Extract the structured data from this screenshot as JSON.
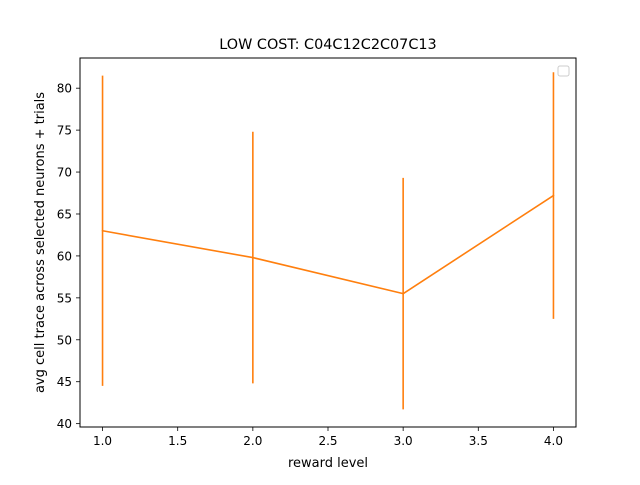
{
  "chart_data": {
    "type": "line",
    "title": "LOW COST: C04C12C2C07C13",
    "xlabel": "reward level",
    "ylabel": "avg cell trace across selected neurons + trials",
    "xlim": [
      0.85,
      4.15
    ],
    "ylim": [
      39.6,
      83.6
    ],
    "xticks": [
      1.0,
      1.5,
      2.0,
      2.5,
      3.0,
      3.5,
      4.0
    ],
    "xtick_labels": [
      "1.0",
      "1.5",
      "2.0",
      "2.5",
      "3.0",
      "3.5",
      "4.0"
    ],
    "yticks": [
      40,
      45,
      50,
      55,
      60,
      65,
      70,
      75,
      80
    ],
    "ytick_labels": [
      "40",
      "45",
      "50",
      "55",
      "60",
      "65",
      "70",
      "75",
      "80"
    ],
    "grid": false,
    "legend": "top-right (empty)",
    "color": "#ff7f0e",
    "series": [
      {
        "x": [
          1.0,
          2.0,
          3.0,
          4.0
        ],
        "y": [
          63.0,
          59.8,
          55.5,
          67.2
        ],
        "error": [
          18.5,
          15.0,
          13.8,
          14.7
        ]
      }
    ]
  }
}
